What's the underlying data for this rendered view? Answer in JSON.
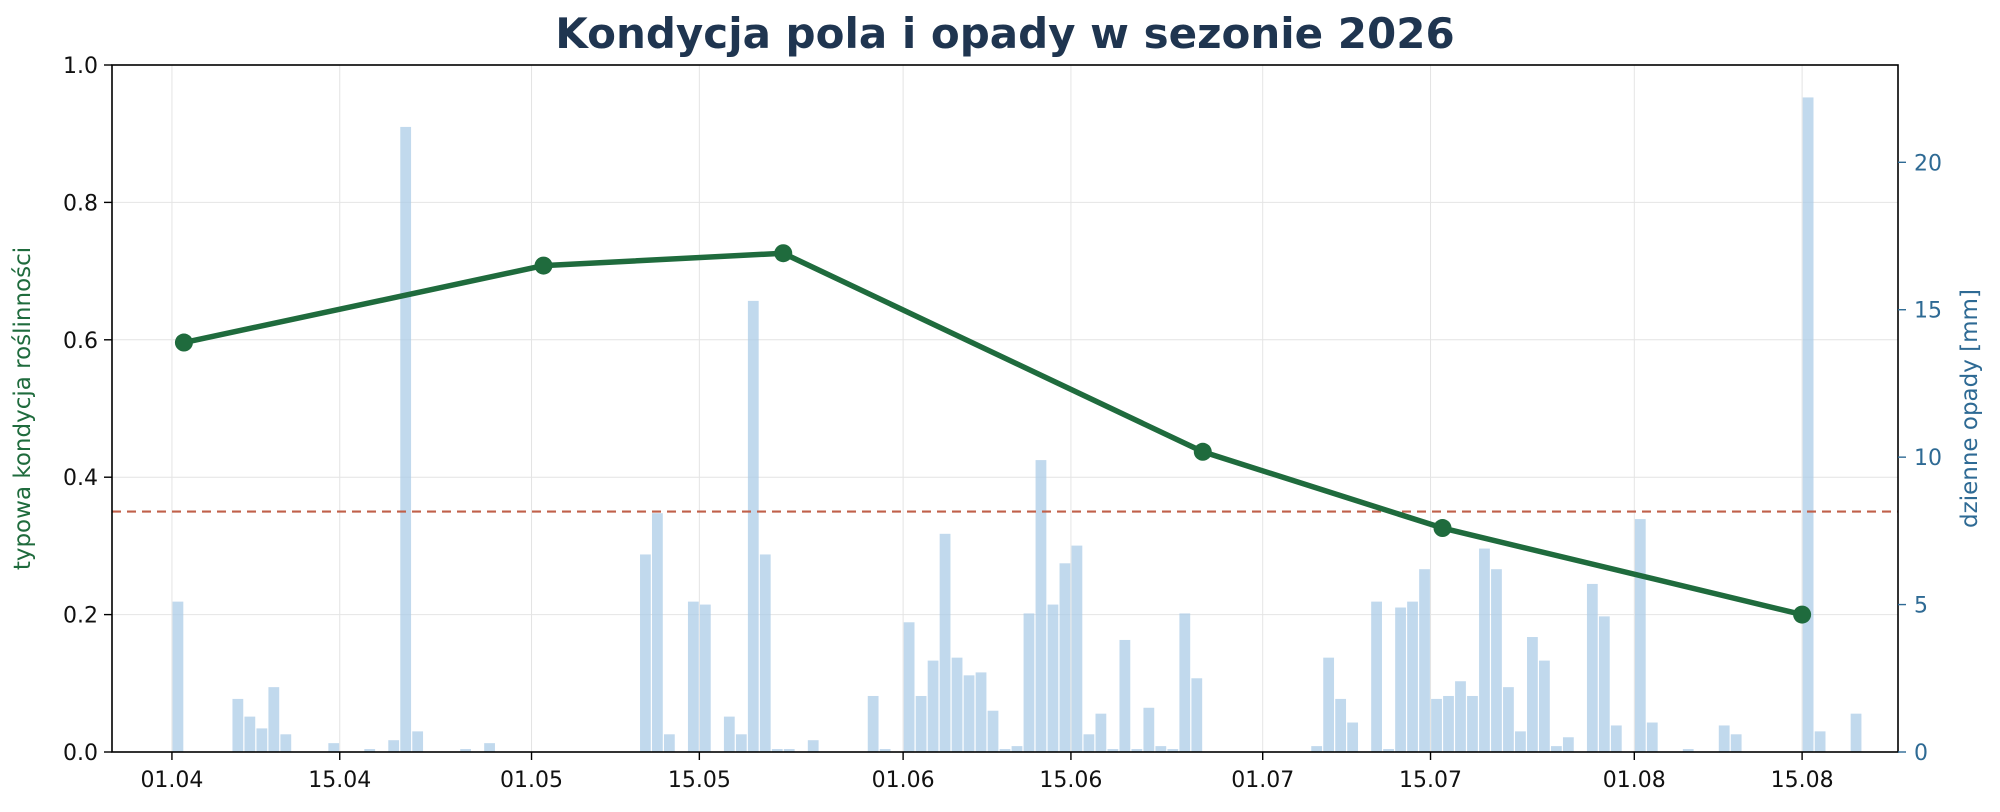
{
  "chart_data": {
    "type": "bar+line",
    "title": "Kondycja pola i opady w sezonie 2026",
    "y_left_label": "typowa kondycja roślinności",
    "y_right_label": "dzienne opady [mm]",
    "y_left_range": [
      0,
      1.0
    ],
    "y_left_ticks": [
      "0.0",
      "0.2",
      "0.4",
      "0.6",
      "0.8",
      "1.0"
    ],
    "y_right_range": [
      0,
      23.3
    ],
    "y_right_ticks": [
      "0",
      "5",
      "10",
      "15",
      "20"
    ],
    "x_range": [
      "2026-03-27",
      "2026-08-23"
    ],
    "x_ticks": [
      {
        "date": "2026-04-01",
        "label": "01.04"
      },
      {
        "date": "2026-04-15",
        "label": "15.04"
      },
      {
        "date": "2026-05-01",
        "label": "01.05"
      },
      {
        "date": "2026-05-15",
        "label": "15.05"
      },
      {
        "date": "2026-06-01",
        "label": "01.06"
      },
      {
        "date": "2026-06-15",
        "label": "15.06"
      },
      {
        "date": "2026-07-01",
        "label": "01.07"
      },
      {
        "date": "2026-07-15",
        "label": "15.07"
      },
      {
        "date": "2026-08-01",
        "label": "01.08"
      },
      {
        "date": "2026-08-15",
        "label": "15.08"
      }
    ],
    "grid": true,
    "threshold": {
      "value": 0.35,
      "color": "#c0604a",
      "style": "dashed"
    },
    "rain": {
      "color": "#a9cbe6",
      "data": [
        [
          "2026-04-01",
          5.1
        ],
        [
          "2026-04-06",
          1.8
        ],
        [
          "2026-04-07",
          1.2
        ],
        [
          "2026-04-08",
          0.8
        ],
        [
          "2026-04-09",
          2.2
        ],
        [
          "2026-04-10",
          0.6
        ],
        [
          "2026-04-14",
          0.3
        ],
        [
          "2026-04-17",
          0.1
        ],
        [
          "2026-04-19",
          0.4
        ],
        [
          "2026-04-20",
          21.2
        ],
        [
          "2026-04-21",
          0.7
        ],
        [
          "2026-04-25",
          0.1
        ],
        [
          "2026-04-27",
          0.3
        ],
        [
          "2026-05-10",
          6.7
        ],
        [
          "2026-05-11",
          8.1
        ],
        [
          "2026-05-12",
          0.6
        ],
        [
          "2026-05-14",
          5.1
        ],
        [
          "2026-05-15",
          5.0
        ],
        [
          "2026-05-17",
          1.2
        ],
        [
          "2026-05-18",
          0.6
        ],
        [
          "2026-05-19",
          15.3
        ],
        [
          "2026-05-20",
          6.7
        ],
        [
          "2026-05-21",
          0.1
        ],
        [
          "2026-05-22",
          0.1
        ],
        [
          "2026-05-24",
          0.4
        ],
        [
          "2026-05-29",
          1.9
        ],
        [
          "2026-05-30",
          0.1
        ],
        [
          "2026-06-01",
          4.4
        ],
        [
          "2026-06-02",
          1.9
        ],
        [
          "2026-06-03",
          3.1
        ],
        [
          "2026-06-04",
          7.4
        ],
        [
          "2026-06-05",
          3.2
        ],
        [
          "2026-06-06",
          2.6
        ],
        [
          "2026-06-07",
          2.7
        ],
        [
          "2026-06-08",
          1.4
        ],
        [
          "2026-06-09",
          0.1
        ],
        [
          "2026-06-10",
          0.2
        ],
        [
          "2026-06-11",
          4.7
        ],
        [
          "2026-06-12",
          9.9
        ],
        [
          "2026-06-13",
          5.0
        ],
        [
          "2026-06-14",
          6.4
        ],
        [
          "2026-06-15",
          7.0
        ],
        [
          "2026-06-16",
          0.6
        ],
        [
          "2026-06-17",
          1.3
        ],
        [
          "2026-06-18",
          0.1
        ],
        [
          "2026-06-19",
          3.8
        ],
        [
          "2026-06-20",
          0.1
        ],
        [
          "2026-06-21",
          1.5
        ],
        [
          "2026-06-22",
          0.2
        ],
        [
          "2026-06-23",
          0.1
        ],
        [
          "2026-06-24",
          4.7
        ],
        [
          "2026-06-25",
          2.5
        ],
        [
          "2026-07-05",
          0.2
        ],
        [
          "2026-07-06",
          3.2
        ],
        [
          "2026-07-07",
          1.8
        ],
        [
          "2026-07-08",
          1.0
        ],
        [
          "2026-07-10",
          5.1
        ],
        [
          "2026-07-11",
          0.1
        ],
        [
          "2026-07-12",
          4.9
        ],
        [
          "2026-07-13",
          5.1
        ],
        [
          "2026-07-14",
          6.2
        ],
        [
          "2026-07-15",
          1.8
        ],
        [
          "2026-07-16",
          1.9
        ],
        [
          "2026-07-17",
          2.4
        ],
        [
          "2026-07-18",
          1.9
        ],
        [
          "2026-07-19",
          6.9
        ],
        [
          "2026-07-20",
          6.2
        ],
        [
          "2026-07-21",
          2.2
        ],
        [
          "2026-07-22",
          0.7
        ],
        [
          "2026-07-23",
          3.9
        ],
        [
          "2026-07-24",
          3.1
        ],
        [
          "2026-07-25",
          0.2
        ],
        [
          "2026-07-26",
          0.5
        ],
        [
          "2026-07-28",
          5.7
        ],
        [
          "2026-07-29",
          4.6
        ],
        [
          "2026-07-30",
          0.9
        ],
        [
          "2026-08-01",
          7.9
        ],
        [
          "2026-08-02",
          1.0
        ],
        [
          "2026-08-05",
          0.1
        ],
        [
          "2026-08-08",
          0.9
        ],
        [
          "2026-08-09",
          0.6
        ],
        [
          "2026-08-15",
          22.2
        ],
        [
          "2026-08-16",
          0.7
        ],
        [
          "2026-08-19",
          1.3
        ]
      ]
    },
    "condition": {
      "color": "#1f6b3d",
      "points": [
        [
          "2026-04-02",
          0.596
        ],
        [
          "2026-05-02",
          0.708
        ],
        [
          "2026-05-22",
          0.726
        ],
        [
          "2026-06-26",
          0.437
        ],
        [
          "2026-07-16",
          0.326
        ],
        [
          "2026-08-15",
          0.2
        ]
      ]
    }
  }
}
